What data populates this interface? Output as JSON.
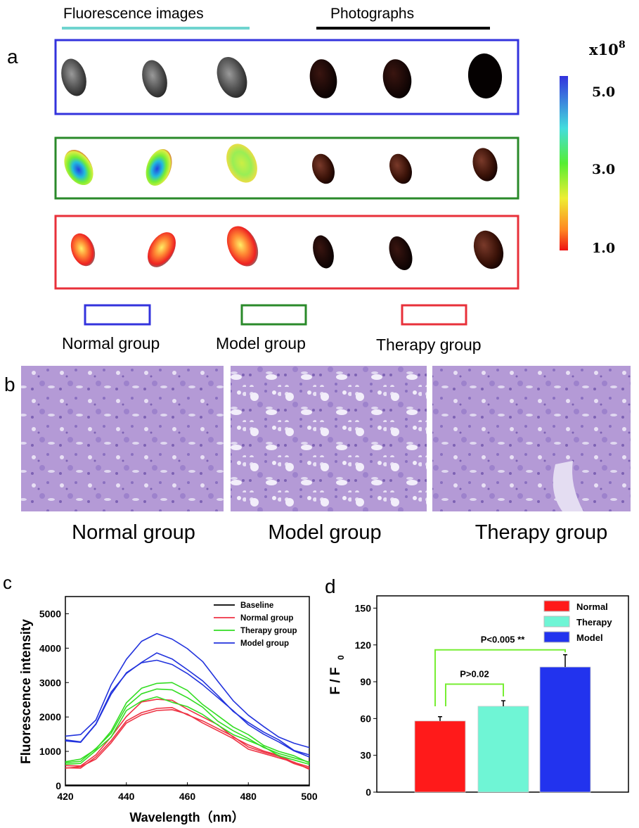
{
  "panel_a": {
    "label": "a",
    "header_fluorescence": "Fluorescence images",
    "header_photographs": "Photographs",
    "colorbar": {
      "unit": "x10",
      "exponent": "8",
      "ticks": [
        "5.0",
        "3.0",
        "1.0"
      ]
    },
    "legend": [
      "Normal group",
      "Model group",
      "Therapy group"
    ],
    "colors": {
      "normal": "#3333dd",
      "model": "#2a8a2a",
      "therapy": "#e8303a",
      "fluor_header_line": "#6fd4cf"
    }
  },
  "panel_b": {
    "label": "b",
    "captions": [
      "Normal group",
      "Model group",
      "Therapy group"
    ]
  },
  "chart_data": [
    {
      "panel": "c",
      "type": "line",
      "xlabel": "Wavelength（nm）",
      "ylabel": "Fluorescence intensity",
      "xlim": [
        420,
        500
      ],
      "ylim": [
        0,
        5500
      ],
      "xticks": [
        "420",
        "440",
        "460",
        "480",
        "500"
      ],
      "yticks": [
        "0",
        "1000",
        "2000",
        "3000",
        "4000",
        "5000"
      ],
      "legend_position": "top-right",
      "legend": [
        {
          "name": "Baseline",
          "color": "#000000"
        },
        {
          "name": "Normal group",
          "color": "#ee3344"
        },
        {
          "name": "Therapy group",
          "color": "#33dd22"
        },
        {
          "name": "Model group",
          "color": "#2233dd"
        }
      ],
      "x": [
        420,
        425,
        430,
        435,
        440,
        445,
        450,
        455,
        460,
        465,
        470,
        475,
        480,
        485,
        490,
        495,
        500
      ],
      "series": [
        {
          "group": "Baseline",
          "color": "#000000",
          "values": [
            20,
            20,
            20,
            20,
            20,
            20,
            20,
            20,
            20,
            20,
            20,
            20,
            20,
            20,
            20,
            20,
            20
          ]
        },
        {
          "group": "Normal group",
          "color": "#ee3344",
          "values": [
            550,
            600,
            900,
            1400,
            2050,
            2450,
            2500,
            2450,
            2250,
            2000,
            1750,
            1450,
            1200,
            1000,
            850,
            700,
            550
          ]
        },
        {
          "group": "Normal group",
          "color": "#ee3344",
          "values": [
            500,
            550,
            850,
            1300,
            1850,
            2150,
            2250,
            2250,
            2100,
            1900,
            1650,
            1400,
            1150,
            980,
            830,
            680,
            520
          ]
        },
        {
          "group": "Normal group",
          "color": "#ee3344",
          "values": [
            500,
            520,
            800,
            1250,
            1800,
            2100,
            2200,
            2200,
            2050,
            1850,
            1600,
            1350,
            1100,
            950,
            800,
            650,
            500
          ]
        },
        {
          "group": "Therapy group",
          "color": "#33dd22",
          "values": [
            700,
            750,
            1100,
            1600,
            2400,
            2800,
            3000,
            3000,
            2750,
            2400,
            2050,
            1700,
            1450,
            1200,
            1000,
            850,
            700
          ]
        },
        {
          "group": "Therapy group",
          "color": "#33dd22",
          "values": [
            680,
            700,
            1050,
            1550,
            2300,
            2650,
            2850,
            2800,
            2550,
            2250,
            1900,
            1600,
            1350,
            1150,
            950,
            800,
            650
          ]
        },
        {
          "group": "Therapy group",
          "color": "#33dd22",
          "values": [
            650,
            650,
            1000,
            1450,
            2200,
            2450,
            2550,
            2450,
            2300,
            2050,
            1800,
            1500,
            1300,
            1100,
            900,
            750,
            600
          ]
        },
        {
          "group": "Model group",
          "color": "#2233dd",
          "values": [
            1480,
            1500,
            1900,
            2900,
            3700,
            4200,
            4400,
            4300,
            4000,
            3600,
            3000,
            2500,
            2050,
            1700,
            1450,
            1250,
            1100
          ]
        },
        {
          "group": "Model group",
          "color": "#2233dd",
          "values": [
            1300,
            1300,
            1800,
            2700,
            3300,
            3600,
            3850,
            3650,
            3400,
            3050,
            2600,
            2200,
            1850,
            1550,
            1300,
            1050,
            900
          ]
        },
        {
          "group": "Model group",
          "color": "#2233dd",
          "values": [
            1280,
            1300,
            1800,
            2650,
            3250,
            3600,
            3650,
            3500,
            3300,
            2950,
            2550,
            2150,
            1800,
            1500,
            1250,
            1050,
            850
          ]
        }
      ]
    },
    {
      "panel": "d",
      "type": "bar",
      "ylabel": "F / F",
      "ylabel_sub": "0",
      "ylim": [
        0,
        160
      ],
      "yticks": [
        "0",
        "30",
        "60",
        "90",
        "120",
        "150"
      ],
      "legend_position": "top-right",
      "categories": [
        "Normal",
        "Therapy",
        "Model"
      ],
      "values": [
        58,
        70,
        102
      ],
      "errors": [
        3.5,
        4.5,
        10
      ],
      "colors": [
        "#ff1a1a",
        "#6ff5d5",
        "#2233ee"
      ],
      "annotations": [
        {
          "text": "P>0.02",
          "from": "Normal",
          "to": "Therapy"
        },
        {
          "text": "P<0.005 **",
          "from": "Normal",
          "to": "Model"
        }
      ],
      "bracket_color": "#77ee33"
    }
  ]
}
